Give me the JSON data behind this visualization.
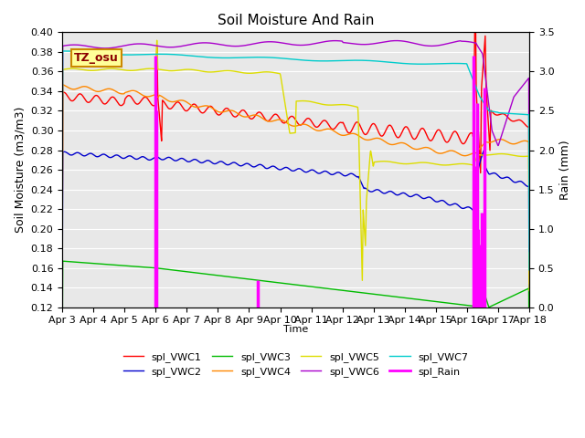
{
  "title": "Soil Moisture And Rain",
  "xlabel": "Time",
  "ylabel_left": "Soil Moisture (m3/m3)",
  "ylabel_right": "Rain (mm)",
  "ylim_left": [
    0.12,
    0.4
  ],
  "ylim_right": [
    0.0,
    3.5
  ],
  "yticks_left": [
    0.12,
    0.14,
    0.16,
    0.18,
    0.2,
    0.22,
    0.24,
    0.26,
    0.28,
    0.3,
    0.32,
    0.34,
    0.36,
    0.38,
    0.4
  ],
  "yticks_right": [
    0.0,
    0.5,
    1.0,
    1.5,
    2.0,
    2.5,
    3.0,
    3.5
  ],
  "xtick_labels": [
    "Apr 3",
    "Apr 4",
    "Apr 5",
    "Apr 6",
    "Apr 7",
    "Apr 8",
    "Apr 9",
    "Apr 10",
    "Apr 11",
    "Apr 12",
    "Apr 13",
    "Apr 14",
    "Apr 15",
    "Apr 16",
    "Apr 17",
    "Apr 18"
  ],
  "annotation_text": "TZ_osu",
  "colors": {
    "spl_VWC1": "#ff0000",
    "spl_VWC2": "#0000cc",
    "spl_VWC3": "#00bb00",
    "spl_VWC4": "#ff8800",
    "spl_VWC5": "#dddd00",
    "spl_VWC6": "#aa00cc",
    "spl_VWC7": "#00cccc",
    "spl_Rain": "#ff00ff"
  },
  "background_color": "#e8e8e8",
  "grid_color": "#ffffff"
}
